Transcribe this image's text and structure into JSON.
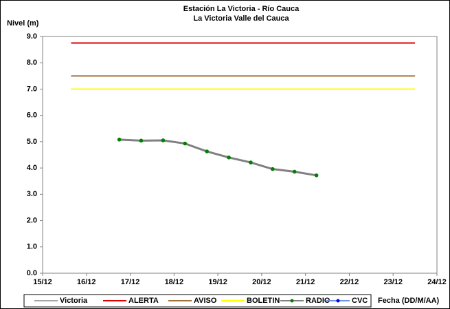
{
  "chart_data": {
    "type": "line",
    "title": "Estación La Victoria - Río Cauca",
    "subtitle": "La Victoria Valle del Cauca",
    "y_label": "Nivel (m)",
    "x_label": "Fecha (DD/M/AA)",
    "xlim": [
      15,
      24
    ],
    "xticks": [
      {
        "value": 15,
        "label": "15/12"
      },
      {
        "value": 16,
        "label": "16/12"
      },
      {
        "value": 17,
        "label": "17/12"
      },
      {
        "value": 18,
        "label": "18/12"
      },
      {
        "value": 19,
        "label": "19/12"
      },
      {
        "value": 20,
        "label": "20/12"
      },
      {
        "value": 21,
        "label": "21/12"
      },
      {
        "value": 22,
        "label": "22/12"
      },
      {
        "value": 23,
        "label": "23/12"
      },
      {
        "value": 24,
        "label": "24/12"
      }
    ],
    "ylim": [
      0,
      9
    ],
    "yticks": [
      {
        "value": 0,
        "label": "0.0"
      },
      {
        "value": 1,
        "label": "1.0"
      },
      {
        "value": 2,
        "label": "2.0"
      },
      {
        "value": 3,
        "label": "3.0"
      },
      {
        "value": 4,
        "label": "4.0"
      },
      {
        "value": 5,
        "label": "5.0"
      },
      {
        "value": 6,
        "label": "6.0"
      },
      {
        "value": 7,
        "label": "7.0"
      },
      {
        "value": 8,
        "label": "8.0"
      },
      {
        "value": 9,
        "label": "9.0"
      }
    ],
    "grid": false,
    "legend": "bottom",
    "series": [
      {
        "name": "Victoria",
        "color": "#a6a6a6",
        "x": [],
        "values": []
      },
      {
        "name": "ALERTA",
        "color": "#e00000",
        "x": [
          15.65,
          23.5
        ],
        "values": [
          8.75,
          8.75
        ]
      },
      {
        "name": "AVISO",
        "color": "#a0703c",
        "x": [
          15.65,
          23.5
        ],
        "values": [
          7.5,
          7.5
        ]
      },
      {
        "name": "BOLETIN",
        "color": "#ffff00",
        "x": [
          15.65,
          23.5
        ],
        "values": [
          7.0,
          7.0
        ]
      },
      {
        "name": "RADIO",
        "color": "#808080",
        "marker_color": "#008000",
        "x": [
          16.75,
          17.25,
          17.75,
          18.25,
          18.75,
          19.25,
          19.75,
          20.25,
          20.75,
          21.25
        ],
        "values": [
          5.08,
          5.04,
          5.05,
          4.93,
          4.63,
          4.4,
          4.21,
          3.96,
          3.86,
          3.72
        ]
      },
      {
        "name": "CVC",
        "color": "#6f8fdf",
        "marker_color": "#0000ff",
        "x": [],
        "values": []
      }
    ]
  }
}
